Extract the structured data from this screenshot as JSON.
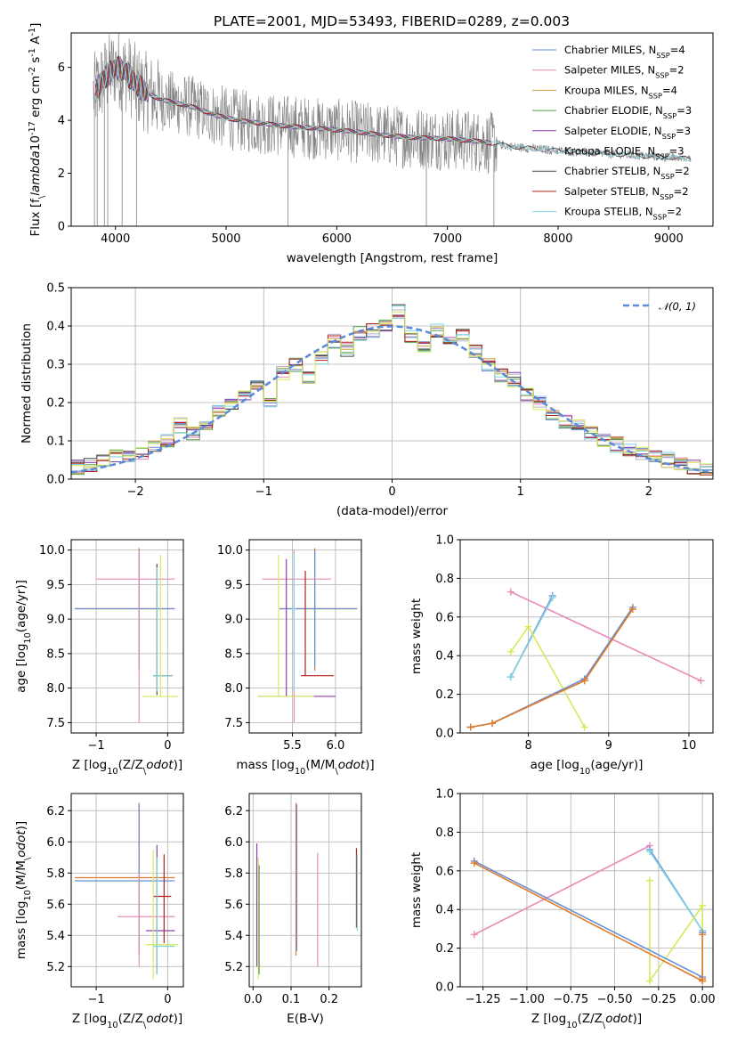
{
  "figure_title": "PLATE=2001, MJD=53493, FIBERID=0289, z=0.003",
  "chart_data": [
    {
      "id": "spectrum",
      "type": "line",
      "title": "PLATE=2001, MJD=53493, FIBERID=0289, z=0.003",
      "xlabel": "wavelength [Angstrom, rest frame]",
      "ylabel": "Flux [f$_\\lambda$10$^{-17}$ erg cm$^{-2}$ s$^{-1}$ A$^{-1}$]",
      "xlim": [
        3600,
        9400
      ],
      "ylim": [
        0,
        7.3
      ],
      "xticks": [
        4000,
        5000,
        6000,
        7000,
        8000,
        9000
      ],
      "yticks": [
        0,
        2,
        4,
        6
      ],
      "grid": false,
      "legend_position": "top-right",
      "legend": [
        {
          "name": "Chabrier MILES, N$_{SSP}$=4",
          "color": "#6a8fd4"
        },
        {
          "name": "Salpeter MILES, N$_{SSP}$=2",
          "color": "#e88cb8"
        },
        {
          "name": "Kroupa MILES, N$_{SSP}$=4",
          "color": "#c6a13a"
        },
        {
          "name": "Chabrier ELODIE, N$_{SSP}$=3",
          "color": "#5a9e52"
        },
        {
          "name": "Salpeter ELODIE, N$_{SSP}$=3",
          "color": "#8b3fb0"
        },
        {
          "name": "Kroupa ELODIE, N$_{SSP}$=3",
          "color": "#b7b0c8"
        },
        {
          "name": "Chabrier STELIB, N$_{SSP}$=2",
          "color": "#4a4a4a"
        },
        {
          "name": "Salpeter STELIB, N$_{SSP}$=2",
          "color": "#b0201c"
        },
        {
          "name": "Kroupa STELIB, N$_{SSP}$=2",
          "color": "#7fd4e0"
        }
      ],
      "data_color": "#808080",
      "continuum": {
        "x": [
          3800,
          3900,
          4000,
          4100,
          4200,
          4300,
          4400,
          4500,
          4700,
          4900,
          5100,
          5300,
          5500,
          5800,
          6100,
          6400,
          6700,
          7000,
          7300,
          7600,
          8000,
          8400,
          8800,
          9200
        ],
        "y": [
          5.0,
          5.6,
          6.0,
          5.8,
          5.3,
          5.0,
          4.8,
          4.7,
          4.5,
          4.2,
          4.0,
          3.9,
          3.8,
          3.7,
          3.6,
          3.45,
          3.35,
          3.3,
          3.2,
          3.0,
          2.85,
          2.75,
          2.65,
          2.55
        ]
      }
    },
    {
      "id": "residuals",
      "type": "line",
      "xlabel": "(data-model)/error",
      "ylabel": "Normed distribution",
      "xlim": [
        -2.5,
        2.5
      ],
      "ylim": [
        0,
        0.5
      ],
      "xticks": [
        -2,
        -1,
        0,
        1,
        2
      ],
      "xtick_labels": [
        "−2",
        "−1",
        "0",
        "1",
        "2"
      ],
      "yticks": [
        0.0,
        0.1,
        0.2,
        0.3,
        0.4,
        0.5
      ],
      "ytick_labels": [
        "0.0",
        "0.1",
        "0.2",
        "0.3",
        "0.4",
        "0.5"
      ],
      "grid": true,
      "legend_position": "top-right",
      "normal_label": "𝒩(0, 1)",
      "normal_color": "#5b8bd6",
      "bin_edges": [
        -2.5,
        -2.4,
        -2.3,
        -2.2,
        -2.1,
        -2.0,
        -1.9,
        -1.8,
        -1.7,
        -1.6,
        -1.5,
        -1.4,
        -1.3,
        -1.2,
        -1.1,
        -1.0,
        -0.9,
        -0.8,
        -0.7,
        -0.6,
        -0.5,
        -0.4,
        -0.3,
        -0.2,
        -0.1,
        0.0,
        0.1,
        0.2,
        0.3,
        0.4,
        0.5,
        0.6,
        0.7,
        0.8,
        0.9,
        1.0,
        1.1,
        1.2,
        1.3,
        1.4,
        1.5,
        1.6,
        1.7,
        1.8,
        1.9,
        2.0,
        2.1,
        2.2,
        2.3,
        2.4,
        2.5
      ],
      "bin_values": [
        0.03,
        0.035,
        0.05,
        0.06,
        0.065,
        0.07,
        0.08,
        0.1,
        0.14,
        0.12,
        0.14,
        0.18,
        0.19,
        0.22,
        0.24,
        0.2,
        0.28,
        0.3,
        0.26,
        0.32,
        0.36,
        0.34,
        0.38,
        0.39,
        0.4,
        0.44,
        0.37,
        0.35,
        0.39,
        0.36,
        0.38,
        0.33,
        0.3,
        0.27,
        0.26,
        0.22,
        0.2,
        0.17,
        0.15,
        0.14,
        0.12,
        0.1,
        0.09,
        0.08,
        0.07,
        0.06,
        0.05,
        0.04,
        0.03,
        0.03
      ],
      "series_colors": [
        "#6a8fd4",
        "#e88cb8",
        "#c6a13a",
        "#5a9e52",
        "#8b3fb0",
        "#b7b0c8",
        "#4a4a4a",
        "#b0201c",
        "#7fd4e0",
        "#d9e85a"
      ]
    },
    {
      "id": "age_vs_Z",
      "type": "scatter",
      "xlabel": "Z [log$_{10}$(Z/Z$_\\odot$)]",
      "ylabel": "age  [log$_{10}$(age/yr)]",
      "xlim": [
        -1.35,
        0.22
      ],
      "ylim": [
        7.35,
        10.15
      ],
      "xticks": [
        -1,
        0
      ],
      "xtick_labels": [
        "−1",
        "0"
      ],
      "yticks": [
        7.5,
        8.0,
        8.5,
        9.0,
        9.5,
        10.0
      ],
      "ytick_labels": [
        "7.5",
        "8.0",
        "8.5",
        "9.0",
        "9.5",
        "10.0"
      ],
      "grid": true,
      "crosses": [
        {
          "cx": -0.4,
          "cy": 9.15,
          "x0": -1.3,
          "x1": 0.1,
          "y0": 8.25,
          "y1": 10.03,
          "color": "#e07b2a"
        },
        {
          "cx": -0.4,
          "cy": 9.15,
          "x0": -1.3,
          "x1": 0.1,
          "y0": 8.3,
          "y1": 10.0,
          "color": "#6a8fd4"
        },
        {
          "cx": -0.4,
          "cy": 9.58,
          "x0": -1.0,
          "x1": 0.1,
          "y0": 7.5,
          "y1": 10.0,
          "color": "#e88cb8"
        },
        {
          "cx": -0.15,
          "cy": 8.18,
          "x0": -0.2,
          "x1": 0.07,
          "y0": 7.9,
          "y1": 9.8,
          "color": "#4a4a4a"
        },
        {
          "cx": -0.15,
          "cy": 8.18,
          "x0": -0.2,
          "x1": 0.07,
          "y0": 7.95,
          "y1": 9.75,
          "color": "#7fd4e0"
        },
        {
          "cx": -0.1,
          "cy": 7.88,
          "x0": -0.35,
          "x1": 0.15,
          "y0": 7.88,
          "y1": 9.93,
          "color": "#d9e85a"
        }
      ]
    },
    {
      "id": "age_vs_mass",
      "type": "scatter",
      "xlabel": "mass [log$_{10}$(M/M$_\\odot$)]",
      "ylabel": "",
      "xlim": [
        5.0,
        6.3
      ],
      "ylim": [
        7.35,
        10.15
      ],
      "xticks": [
        5.5,
        6.0
      ],
      "xtick_labels": [
        "5.5",
        "6.0"
      ],
      "yticks": [
        7.5,
        8.0,
        8.5,
        9.0,
        9.5,
        10.0
      ],
      "ytick_labels": [
        "7.5",
        "8.0",
        "8.5",
        "9.0",
        "9.5",
        "10.0"
      ],
      "grid": true,
      "crosses": [
        {
          "cx": 5.76,
          "cy": 9.15,
          "x0": 5.35,
          "x1": 6.25,
          "y0": 8.25,
          "y1": 10.03,
          "color": "#e07b2a"
        },
        {
          "cx": 5.76,
          "cy": 9.15,
          "x0": 5.35,
          "x1": 6.25,
          "y0": 8.3,
          "y1": 10.0,
          "color": "#6a8fd4"
        },
        {
          "cx": 5.52,
          "cy": 9.58,
          "x0": 5.15,
          "x1": 5.95,
          "y0": 7.5,
          "y1": 10.0,
          "color": "#e88cb8"
        },
        {
          "cx": 5.43,
          "cy": 7.88,
          "x0": 5.1,
          "x1": 6.0,
          "y0": 7.88,
          "y1": 9.87,
          "color": "#8b3fb0"
        },
        {
          "cx": 5.65,
          "cy": 8.18,
          "x0": 5.6,
          "x1": 5.98,
          "y0": 8.18,
          "y1": 9.7,
          "color": "#b0201c"
        },
        {
          "cx": 5.34,
          "cy": 7.88,
          "x0": 5.1,
          "x1": 5.75,
          "y0": 7.88,
          "y1": 9.93,
          "color": "#d9e85a"
        },
        {
          "cx": 5.52,
          "cy": 9.15,
          "x0": 5.49,
          "x1": 5.54,
          "y0": 7.95,
          "y1": 9.95,
          "color": "#7fd4e0"
        }
      ]
    },
    {
      "id": "massweight_vs_age",
      "type": "line",
      "xlabel": "age  [log$_{10}$(age/yr)]",
      "ylabel": "mass weight",
      "xlim": [
        7.15,
        10.3
      ],
      "ylim": [
        0,
        1.0
      ],
      "xticks": [
        8,
        9,
        10
      ],
      "xtick_labels": [
        "8",
        "9",
        "10"
      ],
      "yticks": [
        0.0,
        0.2,
        0.4,
        0.6,
        0.8,
        1.0
      ],
      "ytick_labels": [
        "0.0",
        "0.2",
        "0.4",
        "0.6",
        "0.8",
        "1.0"
      ],
      "grid": true,
      "series": [
        {
          "color": "#e88cb8",
          "x": [
            7.78,
            10.15
          ],
          "y": [
            0.73,
            0.27
          ]
        },
        {
          "color": "#6a8fd4",
          "x": [
            7.78,
            8.3
          ],
          "y": [
            0.29,
            0.71
          ]
        },
        {
          "color": "#7fd4e0",
          "x": [
            7.78,
            8.3
          ],
          "y": [
            0.29,
            0.7
          ]
        },
        {
          "color": "#d9e85a",
          "x": [
            7.78,
            8.0,
            8.7
          ],
          "y": [
            0.42,
            0.55,
            0.03
          ]
        },
        {
          "color": "#6a8fd4",
          "x": [
            7.28,
            7.55,
            8.7,
            9.3
          ],
          "y": [
            0.03,
            0.05,
            0.28,
            0.65
          ]
        },
        {
          "color": "#e07b2a",
          "x": [
            7.28,
            7.55,
            8.7,
            9.3
          ],
          "y": [
            0.03,
            0.05,
            0.27,
            0.64
          ]
        }
      ]
    },
    {
      "id": "mass_vs_Z",
      "type": "scatter",
      "xlabel": "Z [log$_{10}$(Z/Z$_\\odot$)]",
      "ylabel": "mass [log$_{10}$(M/M$_\\odot$)]",
      "xlim": [
        -1.35,
        0.22
      ],
      "ylim": [
        5.07,
        6.31
      ],
      "xticks": [
        -1,
        0
      ],
      "xtick_labels": [
        "−1",
        "0"
      ],
      "yticks": [
        5.2,
        5.4,
        5.6,
        5.8,
        6.0,
        6.2
      ],
      "ytick_labels": [
        "5.2",
        "5.4",
        "5.6",
        "5.8",
        "6.0",
        "6.2"
      ],
      "grid": true,
      "crosses": [
        {
          "cx": -0.4,
          "cy": 5.77,
          "x0": -1.3,
          "x1": 0.1,
          "y0": 5.27,
          "y1": 6.25,
          "color": "#e07b2a"
        },
        {
          "cx": -0.4,
          "cy": 5.75,
          "x0": -1.3,
          "x1": 0.1,
          "y0": 5.3,
          "y1": 6.24,
          "color": "#6a8fd4"
        },
        {
          "cx": -0.4,
          "cy": 5.52,
          "x0": -0.7,
          "x1": 0.1,
          "y0": 5.2,
          "y1": 5.8,
          "color": "#e88cb8"
        },
        {
          "cx": -0.15,
          "cy": 5.43,
          "x0": -0.3,
          "x1": 0.1,
          "y0": 5.15,
          "y1": 5.98,
          "color": "#8b3fb0"
        },
        {
          "cx": -0.05,
          "cy": 5.65,
          "x0": -0.2,
          "x1": 0.05,
          "y0": 5.35,
          "y1": 5.92,
          "color": "#b0201c"
        },
        {
          "cx": -0.2,
          "cy": 5.34,
          "x0": -0.3,
          "x1": 0.15,
          "y0": 5.12,
          "y1": 5.95,
          "color": "#d9e85a"
        },
        {
          "cx": -0.15,
          "cy": 5.33,
          "x0": -0.2,
          "x1": 0.1,
          "y0": 5.15,
          "y1": 5.9,
          "color": "#7fd4e0"
        }
      ]
    },
    {
      "id": "mass_vs_ebv",
      "type": "scatter",
      "xlabel": "E(B-V)",
      "ylabel": "",
      "xlim": [
        -0.01,
        0.285
      ],
      "ylim": [
        5.07,
        6.31
      ],
      "xticks": [
        0.0,
        0.1,
        0.2
      ],
      "xtick_labels": [
        "0.0",
        "0.1",
        "0.2"
      ],
      "yticks": [
        5.2,
        5.4,
        5.6,
        5.8,
        6.0,
        6.2
      ],
      "ytick_labels": [
        "5.2",
        "5.4",
        "5.6",
        "5.8",
        "6.0",
        "6.2"
      ],
      "grid": true,
      "crosses": [
        {
          "cx": 0.01,
          "cy": 5.6,
          "x0": 0.01,
          "x1": 0.01,
          "y0": 5.2,
          "y1": 5.99,
          "color": "#8b3fb0"
        },
        {
          "cx": 0.014,
          "cy": 5.5,
          "x0": 0.014,
          "x1": 0.014,
          "y0": 5.12,
          "y1": 5.9,
          "color": "#d9e85a"
        },
        {
          "cx": 0.016,
          "cy": 5.5,
          "x0": 0.016,
          "x1": 0.016,
          "y0": 5.15,
          "y1": 5.85,
          "color": "#5a9e52"
        },
        {
          "cx": 0.113,
          "cy": 5.77,
          "x0": 0.113,
          "x1": 0.113,
          "y0": 5.27,
          "y1": 6.25,
          "color": "#e07b2a"
        },
        {
          "cx": 0.115,
          "cy": 5.75,
          "x0": 0.115,
          "x1": 0.115,
          "y0": 5.3,
          "y1": 6.24,
          "color": "#6a8fd4"
        },
        {
          "cx": 0.17,
          "cy": 5.52,
          "x0": 0.17,
          "x1": 0.17,
          "y0": 5.2,
          "y1": 5.93,
          "color": "#e88cb8"
        },
        {
          "cx": 0.272,
          "cy": 5.65,
          "x0": 0.272,
          "x1": 0.272,
          "y0": 5.45,
          "y1": 5.96,
          "color": "#b0201c"
        },
        {
          "cx": 0.274,
          "cy": 5.6,
          "x0": 0.274,
          "x1": 0.274,
          "y0": 5.43,
          "y1": 5.92,
          "color": "#7fd4e0"
        }
      ]
    },
    {
      "id": "massweight_vs_Z",
      "type": "line",
      "xlabel": "Z [log$_{10}$(Z/Z$_\\odot$)]",
      "ylabel": "mass weight",
      "xlim": [
        -1.38,
        0.06
      ],
      "ylim": [
        0,
        1.0
      ],
      "xticks": [
        -1.25,
        -1.0,
        -0.75,
        -0.5,
        -0.25,
        0.0
      ],
      "xtick_labels": [
        "−1.25",
        "−1.00",
        "−0.75",
        "−0.50",
        "−0.25",
        "0.00"
      ],
      "yticks": [
        0.0,
        0.2,
        0.4,
        0.6,
        0.8,
        1.0
      ],
      "ytick_labels": [
        "0.0",
        "0.2",
        "0.4",
        "0.6",
        "0.8",
        "1.0"
      ],
      "grid": true,
      "series": [
        {
          "color": "#e88cb8",
          "x": [
            -1.3,
            -0.3
          ],
          "y": [
            0.27,
            0.73
          ]
        },
        {
          "color": "#6a8fd4",
          "x": [
            -0.3,
            0.0
          ],
          "y": [
            0.71,
            0.29
          ]
        },
        {
          "color": "#7fd4e0",
          "x": [
            -0.3,
            0.0
          ],
          "y": [
            0.7,
            0.29
          ]
        },
        {
          "color": "#d9e85a",
          "x": [
            -0.3,
            -0.3,
            0.0,
            0.0
          ],
          "y": [
            0.55,
            0.03,
            0.42,
            0.03
          ]
        },
        {
          "color": "#6a8fd4",
          "x": [
            -1.3,
            0.0,
            0.0
          ],
          "y": [
            0.65,
            0.05,
            0.28
          ]
        },
        {
          "color": "#e07b2a",
          "x": [
            -1.3,
            0.0,
            0.0,
            0.0
          ],
          "y": [
            0.64,
            0.03,
            0.04,
            0.27
          ]
        }
      ]
    }
  ]
}
